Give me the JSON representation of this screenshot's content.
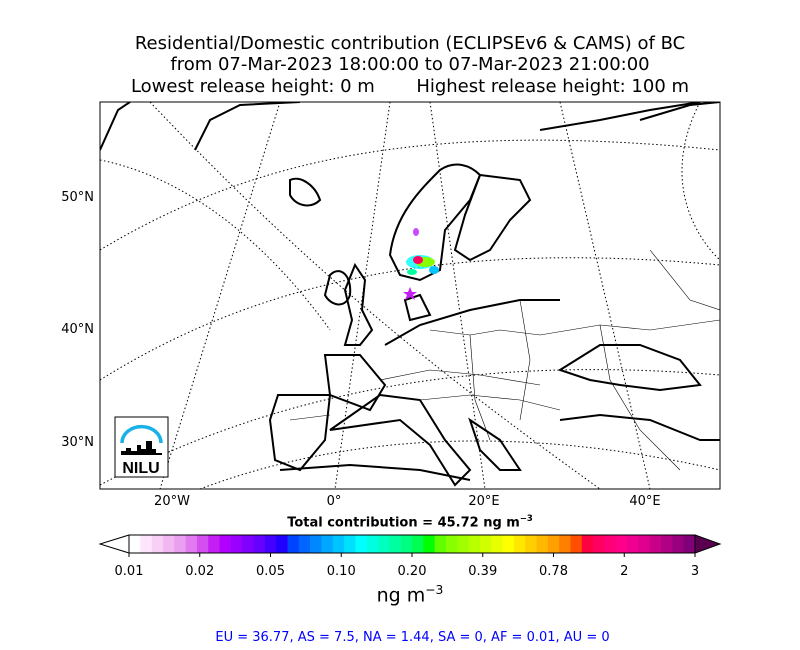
{
  "title": {
    "line1": "Residential/Domestic contribution (ECLIPSEv6 & CAMS) of BC",
    "line2": "from 07-Mar-2023 18:00:00 to 07-Mar-2023 21:00:00",
    "line3_left": "Lowest release height: 0 m",
    "line3_right": "Highest release height: 100 m"
  },
  "map": {
    "projection": "polar stereographic (Europe)",
    "lat_labels": [
      "50°N",
      "40°N",
      "30°N"
    ],
    "lon_labels": [
      "20°W",
      "0°",
      "20°E",
      "40°E"
    ],
    "graticule_style": "dotted",
    "plume_region": "southern Norway / Sweden / Denmark",
    "logo": "NILU",
    "logo_color": "#1ab0e8"
  },
  "total": {
    "label": "Total contribution = 45.72 ng m",
    "exp": "−3"
  },
  "colorbar": {
    "ticks": [
      "0.01",
      "0.02",
      "0.05",
      "0.10",
      "0.20",
      "0.39",
      "0.78",
      "2",
      "3"
    ],
    "unit": "ng m",
    "unit_exp": "−3",
    "extend": "both",
    "under_color": "#ffffff",
    "over_color": "#5a0050",
    "colors": [
      "#ffffff",
      "#fde6fb",
      "#f8d0f6",
      "#f2b8f2",
      "#eb9ff0",
      "#e27bf0",
      "#d44ef0",
      "#c41ef5",
      "#b000ff",
      "#9a00ff",
      "#8000ff",
      "#6600ff",
      "#4400ff",
      "#2200ff",
      "#0044ff",
      "#0066ff",
      "#0088ff",
      "#00a8ff",
      "#00c4ff",
      "#00e0ff",
      "#00ffff",
      "#00ffe0",
      "#00ffc0",
      "#00ffa0",
      "#00ff80",
      "#00ff50",
      "#00ff00",
      "#60ff00",
      "#88ff00",
      "#a0ff00",
      "#b8ff00",
      "#d0ff00",
      "#e8ff00",
      "#ffff00",
      "#ffe800",
      "#ffd000",
      "#ffb800",
      "#ffa000",
      "#ff8000",
      "#ff5000",
      "#ff0040",
      "#ff0060",
      "#ff0078",
      "#ff0088",
      "#f00090",
      "#e0008f",
      "#c8008a",
      "#b00085",
      "#980080",
      "#800078"
    ]
  },
  "regions": "EU = 36.77,  AS = 7.5,  NA = 1.44,  SA = 0,  AF = 0.01,  AU = 0",
  "region_text_color": "#0000ff"
}
